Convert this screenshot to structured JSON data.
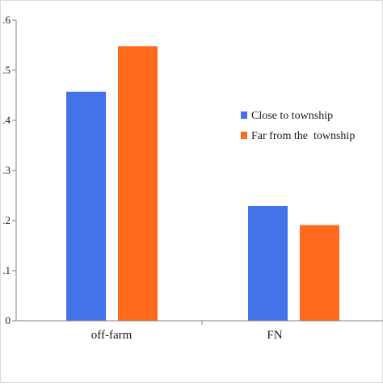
{
  "chart_data": {
    "type": "bar",
    "title": "",
    "xlabel": "",
    "ylabel": "",
    "categories": [
      "off-farm",
      "FN"
    ],
    "series": [
      {
        "name": "Close to township",
        "values": [
          0.457,
          0.229
        ],
        "color": "#4472E8"
      },
      {
        "name": "Far from the  township",
        "values": [
          0.548,
          0.191
        ],
        "color": "#FF6A1F"
      }
    ],
    "yticks": [
      0,
      0.1,
      0.2,
      0.3,
      0.4,
      0.5,
      0.6
    ],
    "ytick_labels": [
      "0",
      ".1",
      ".2",
      ".3",
      ".4",
      ".5",
      ".6"
    ],
    "ylim": [
      0,
      0.6
    ],
    "grid": false,
    "legend_position": "right"
  }
}
